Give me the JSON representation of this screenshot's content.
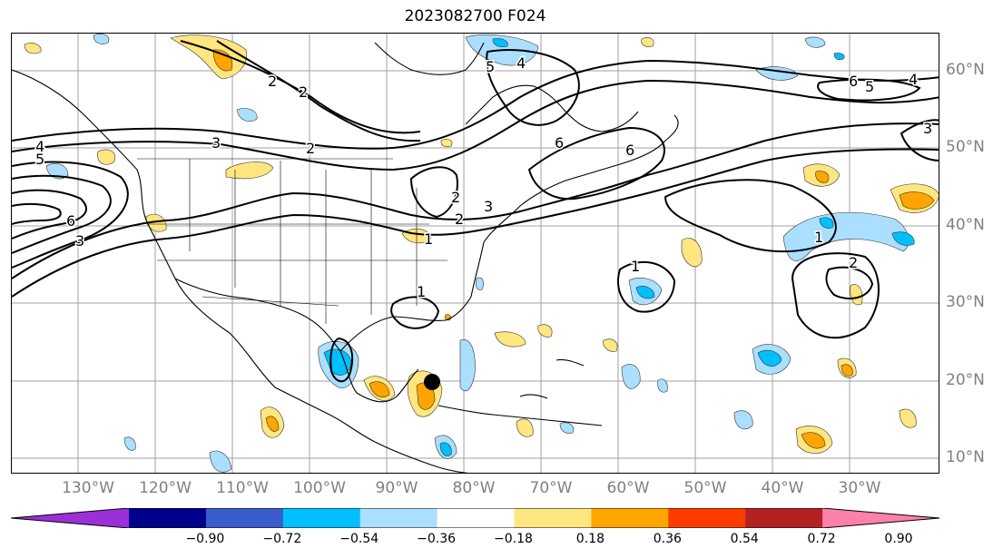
{
  "title": "2023082700 F024",
  "map": {
    "region": "North Atlantic and North America",
    "storm_marker": "black-dot",
    "lat_labels": [
      "60°N",
      "50°N",
      "40°N",
      "30°N",
      "20°N",
      "10°N"
    ],
    "lon_labels": [
      "130°W",
      "120°W",
      "110°W",
      "100°W",
      "90°W",
      "80°W",
      "70°W",
      "60°W",
      "50°W",
      "40°W",
      "30°W"
    ],
    "contour_labels": [
      "2",
      "2",
      "3",
      "4",
      "5",
      "6",
      "3",
      "5",
      "4",
      "6",
      "2",
      "3",
      "1",
      "2",
      "1",
      "1",
      "2",
      "6",
      "5",
      "4",
      "3",
      "1",
      "2",
      "6"
    ]
  },
  "colorbar": {
    "ticks": [
      "−0.90",
      "−0.72",
      "−0.54",
      "−0.36",
      "−0.18",
      "0.18",
      "0.36",
      "0.54",
      "0.72",
      "0.90"
    ],
    "colors": [
      "#9b30d9",
      "#00008b",
      "#3a5bcc",
      "#00bfff",
      "#aadfff",
      "#ffffff",
      "#ffe680",
      "#ffa500",
      "#ff3c00",
      "#b22222",
      "#ff80aa"
    ]
  }
}
